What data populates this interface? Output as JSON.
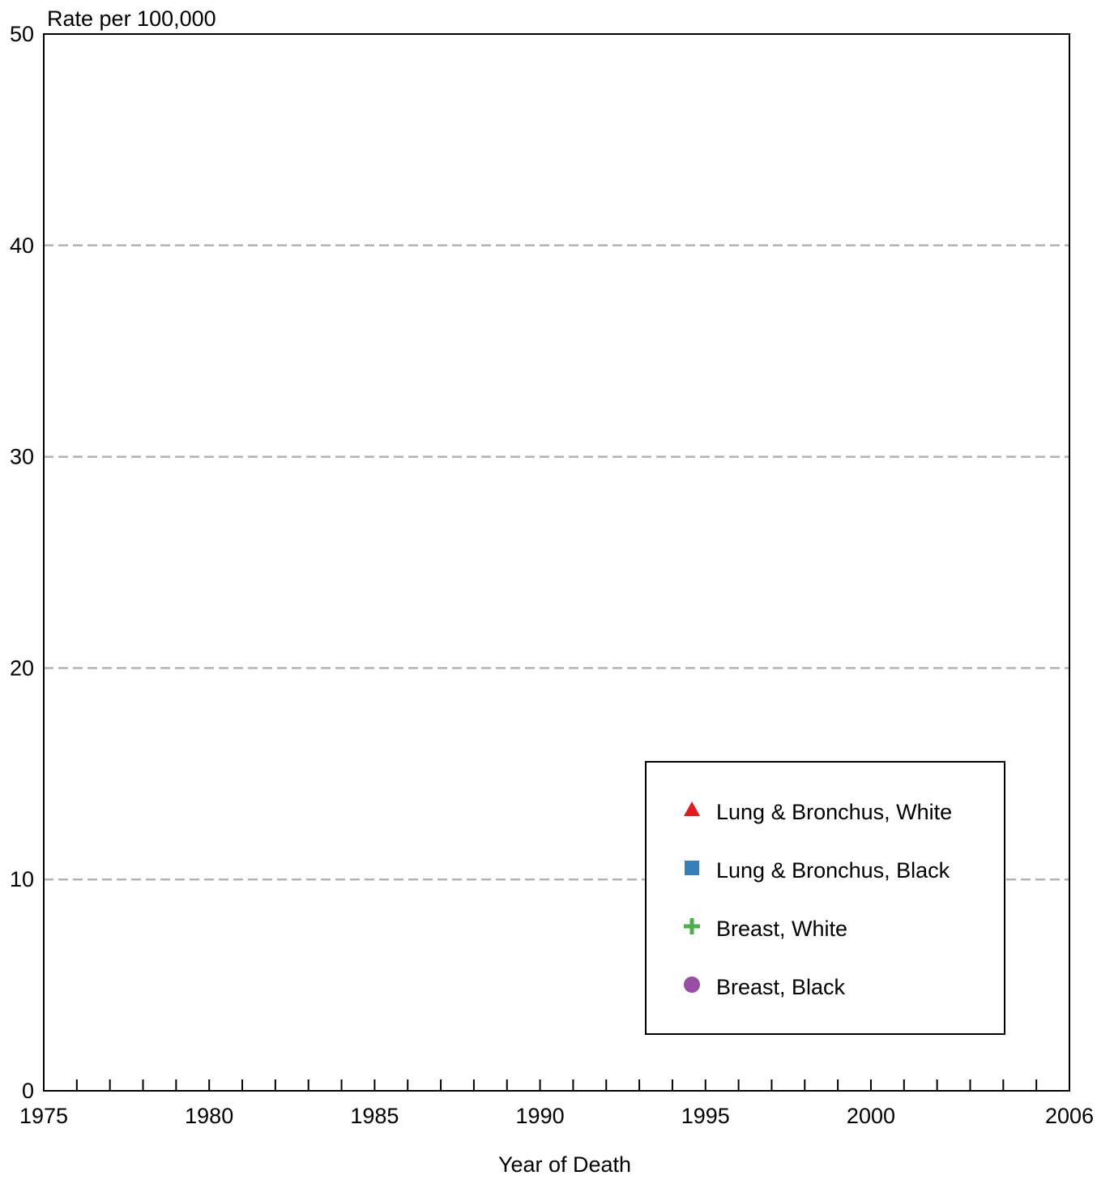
{
  "chart_data": {
    "type": "scatter",
    "ylabel": "Rate per 100,000",
    "xlabel": "Year of Death",
    "xlim": [
      1975,
      2006
    ],
    "ylim": [
      0,
      50
    ],
    "x_ticks_labeled": [
      1975,
      1980,
      1985,
      1990,
      1995,
      2000,
      2006
    ],
    "x_minor_ticks": [
      1976,
      1977,
      1978,
      1979,
      1981,
      1982,
      1983,
      1984,
      1986,
      1987,
      1988,
      1989,
      1991,
      1992,
      1993,
      1994,
      1996,
      1997,
      1998,
      1999,
      2001,
      2002,
      2003,
      2004,
      2005
    ],
    "y_ticks": [
      0,
      10,
      20,
      30,
      40,
      50
    ],
    "grid": {
      "y": true,
      "style": "dashed",
      "color": "#b3b3b3"
    },
    "legend_position": "bottom-right",
    "series": [
      {
        "name": "Lung & Bronchus, White",
        "marker": "triangle",
        "color": "#e31a1c",
        "points": []
      },
      {
        "name": "Lung & Bronchus, Black",
        "marker": "square",
        "color": "#377eb8",
        "points": []
      },
      {
        "name": "Breast, White",
        "marker": "plus",
        "color": "#4daf4a",
        "points": []
      },
      {
        "name": "Breast, Black",
        "marker": "circle",
        "color": "#984ea3",
        "points": []
      }
    ]
  }
}
